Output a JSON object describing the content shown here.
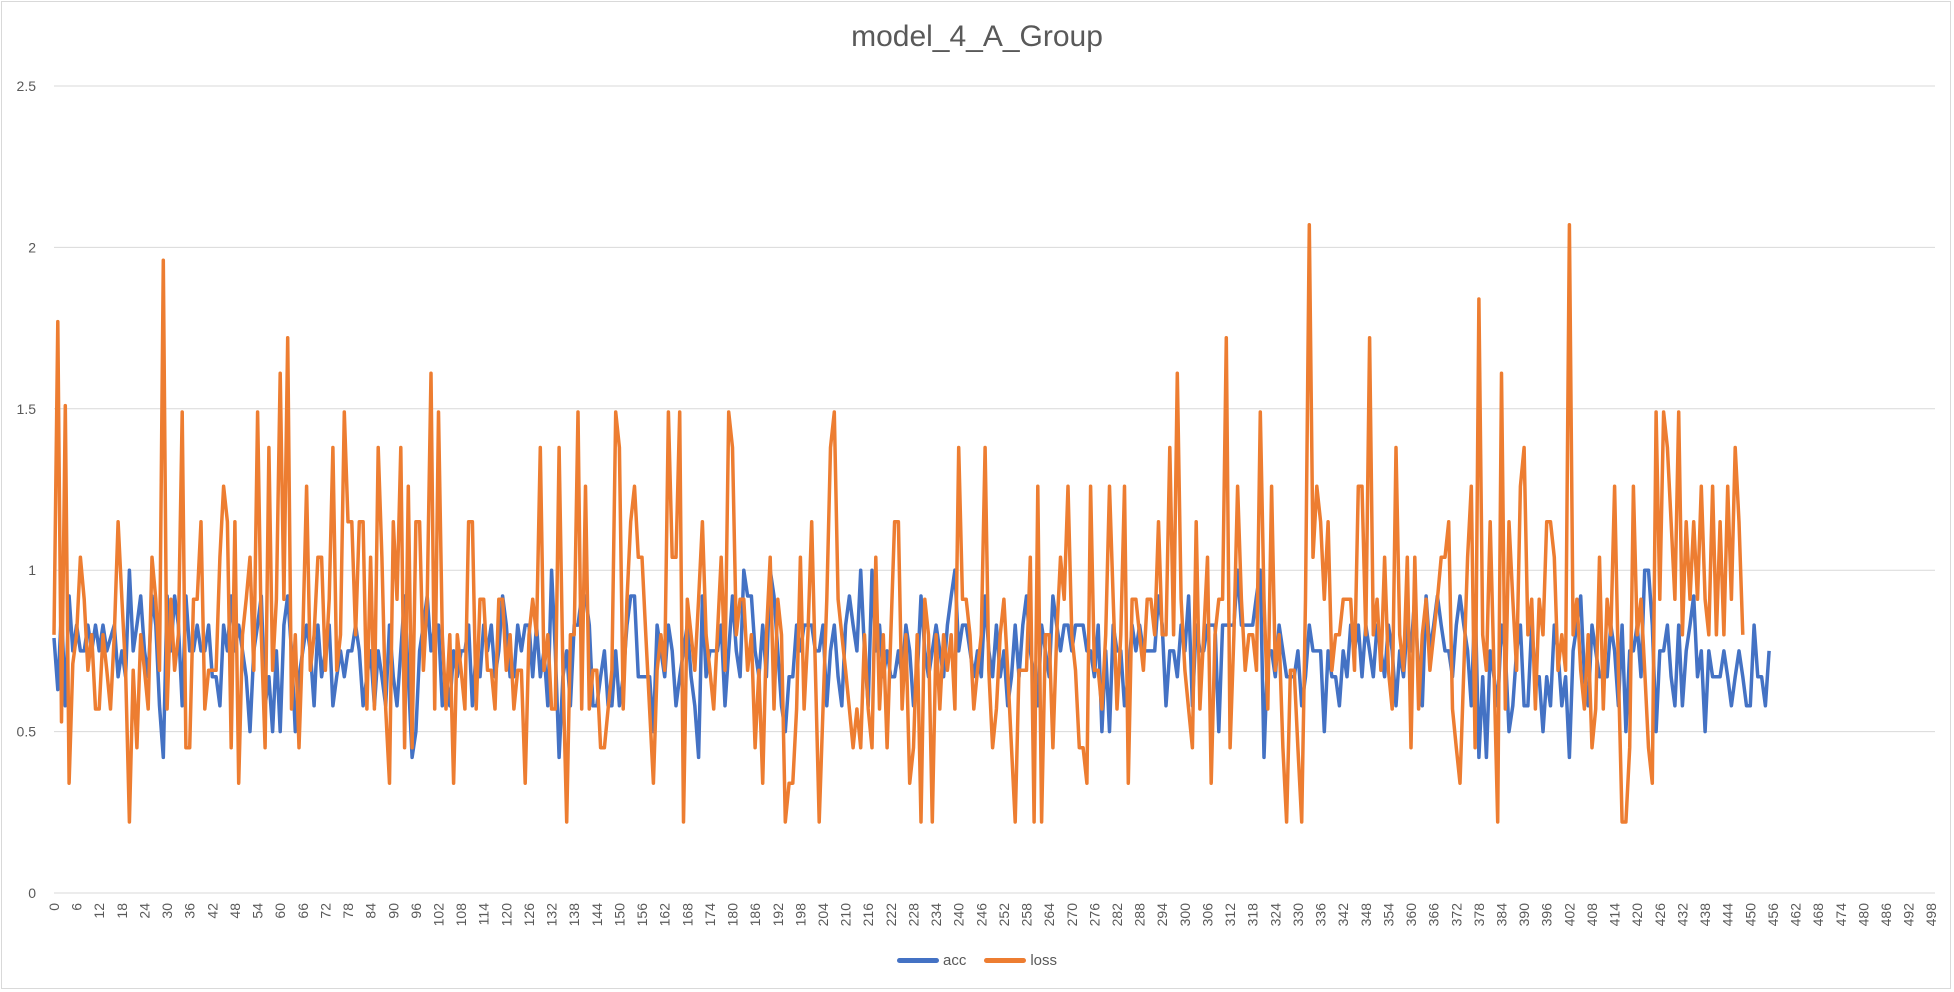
{
  "chart_data": {
    "type": "line",
    "title": "model_4_A_Group",
    "xlabel": "",
    "ylabel": "",
    "x_tick_step": 6,
    "x_range": [
      0,
      499
    ],
    "ylim": [
      0,
      2.5
    ],
    "y_ticks": [
      "0",
      "0.5",
      "1",
      "1.5",
      "2",
      "2.5"
    ],
    "grid": "horizontal",
    "legend_position": "bottom",
    "series": [
      {
        "name": "acc",
        "color": "#4472C4",
        "note": "oscillates mostly between 0.5 and 1.0, mean around 0.75",
        "values": [
          0.79,
          0.63,
          0.88,
          0.58,
          0.92,
          0.75,
          0.83,
          0.75,
          0.75,
          0.83,
          0.75,
          0.83,
          0.75,
          0.83,
          0.75,
          0.79,
          0.83,
          0.67,
          0.75,
          0.67,
          1.0,
          0.75,
          0.83,
          0.92,
          0.75,
          0.67,
          0.92,
          0.83,
          0.58,
          0.42,
          0.92,
          0.75,
          0.92,
          0.83,
          0.58,
          0.92,
          0.75,
          0.75,
          0.83,
          0.75,
          0.75,
          0.83,
          0.67,
          0.67,
          0.58,
          0.83,
          0.75,
          0.92,
          0.75,
          0.83,
          0.75,
          0.67,
          0.5,
          0.75,
          0.83,
          0.92,
          0.58,
          0.67,
          0.5,
          0.75,
          0.5,
          0.83,
          0.92,
          0.75,
          0.5,
          0.67,
          0.75,
          0.83,
          0.75,
          0.58,
          0.83,
          0.67,
          0.75,
          0.83,
          0.58,
          0.67,
          0.75,
          0.67,
          0.75,
          0.75,
          0.83,
          0.75,
          0.58,
          0.67,
          0.75,
          0.58,
          0.75,
          0.67,
          0.58,
          0.83,
          0.67,
          0.58,
          0.75,
          0.92,
          0.67,
          0.42,
          0.5,
          0.75,
          0.83,
          0.92,
          0.75,
          0.83,
          0.83,
          0.58,
          0.67,
          0.58,
          0.75,
          0.67,
          0.75,
          0.75,
          0.83,
          0.58,
          0.75,
          0.67,
          0.83,
          0.75,
          0.83,
          0.67,
          0.75,
          0.92,
          0.83,
          0.67,
          0.67,
          0.83,
          0.75,
          0.83,
          0.83,
          0.67,
          0.83,
          0.67,
          0.75,
          0.58,
          1.0,
          0.75,
          0.42,
          0.67,
          0.75,
          0.58,
          0.83,
          0.83,
          0.92,
          0.92,
          0.83,
          0.58,
          0.58,
          0.67,
          0.75,
          0.58,
          0.58,
          0.75,
          0.58,
          0.67,
          0.83,
          0.92,
          0.92,
          0.67,
          0.67,
          0.67,
          0.67,
          0.5,
          0.83,
          0.75,
          0.67,
          0.83,
          0.75,
          0.58,
          0.67,
          0.75,
          0.83,
          0.67,
          0.58,
          0.42,
          0.92,
          0.67,
          0.75,
          0.75,
          0.75,
          0.83,
          0.58,
          0.75,
          0.92,
          0.75,
          0.67,
          1.0,
          0.92,
          0.92,
          0.75,
          0.67,
          0.83,
          0.67,
          1.0,
          0.92,
          0.75,
          0.58,
          0.5,
          0.67,
          0.67,
          0.83,
          0.75,
          0.83,
          0.83,
          0.83,
          0.75,
          0.75,
          0.83,
          0.58,
          0.75,
          0.83,
          0.67,
          0.58,
          0.83,
          0.92,
          0.83,
          0.75,
          1.0,
          0.75,
          0.58,
          1.0,
          0.75,
          0.83,
          0.67,
          0.75,
          0.67,
          0.67,
          0.75,
          0.67,
          0.83,
          0.75,
          0.58,
          0.67,
          0.92,
          0.75,
          0.67,
          0.75,
          0.83,
          0.75,
          0.67,
          0.83,
          0.92,
          1.0,
          0.75,
          0.83,
          0.83,
          0.75,
          0.67,
          0.75,
          0.67,
          0.92,
          0.75,
          0.67,
          0.83,
          0.67,
          0.75,
          0.58,
          0.67,
          0.83,
          0.67,
          0.83,
          0.92,
          0.75,
          0.67,
          0.58,
          0.83,
          0.75,
          0.67,
          0.92,
          0.83,
          0.75,
          0.83,
          0.83,
          0.75,
          0.83,
          0.83,
          0.83,
          0.75,
          0.75,
          0.67,
          0.83,
          0.5,
          0.75,
          0.5,
          0.83,
          0.75,
          0.75,
          0.58,
          0.67,
          0.83,
          0.75,
          0.83,
          0.75,
          0.75,
          0.75,
          0.75,
          0.92,
          0.83,
          0.58,
          0.75,
          0.75,
          0.67,
          0.83,
          0.75,
          0.92,
          0.58,
          0.83,
          0.75,
          0.75,
          0.83,
          0.83,
          0.83,
          0.5,
          0.83,
          0.83,
          0.83,
          0.83,
          1.0,
          0.83,
          0.83,
          0.83,
          0.83,
          0.92,
          1.0,
          0.42,
          0.75,
          0.75,
          0.67,
          0.83,
          0.75,
          0.67,
          0.67,
          0.67,
          0.75,
          0.58,
          0.67,
          0.83,
          0.75,
          0.75,
          0.75,
          0.5,
          0.75,
          0.67,
          0.67,
          0.58,
          0.75,
          0.67,
          0.83,
          0.75,
          0.83,
          0.67,
          0.83,
          0.75,
          0.67,
          0.83,
          0.75,
          0.67,
          0.83,
          0.75,
          0.58,
          0.75,
          0.67,
          0.83,
          0.75,
          0.92,
          0.67,
          0.58,
          0.92,
          0.75,
          0.83,
          0.92,
          0.83,
          0.75,
          0.75,
          0.67,
          0.83,
          0.92,
          0.83,
          0.75,
          0.58,
          0.92,
          0.42,
          0.67,
          0.42,
          0.75,
          0.67,
          0.58,
          0.83,
          0.75,
          0.5,
          0.58,
          0.75,
          0.83,
          0.58,
          0.58,
          0.83,
          0.67,
          0.67,
          0.5,
          0.67,
          0.58,
          0.83,
          0.75,
          0.58,
          0.67,
          0.42,
          0.75,
          0.83,
          0.92,
          0.67,
          0.58,
          0.83,
          0.75,
          0.67,
          0.67,
          0.67,
          0.83,
          0.75,
          0.58,
          0.83,
          0.5,
          0.75,
          0.75,
          0.83,
          0.67,
          1.0,
          1.0,
          0.83,
          0.5,
          0.75,
          0.75,
          0.83,
          0.67,
          0.58,
          0.83,
          0.58,
          0.75,
          0.83,
          0.92,
          0.67,
          0.75,
          0.5,
          0.75,
          0.67,
          0.67,
          0.67,
          0.75,
          0.67,
          0.58,
          0.67,
          0.75,
          0.67,
          0.58,
          0.58,
          0.83,
          0.67,
          0.67,
          0.58,
          0.75
        ]
      },
      {
        "name": "loss",
        "color": "#ED7D31",
        "note": "highly volatile, mostly 0.3 to 1.5, peaks near 2.07 around x=362 and x=440, 1.96 around x=29",
        "values": [
          0.8,
          1.77,
          0.53,
          1.51,
          0.34,
          0.71,
          0.8,
          1.04,
          0.91,
          0.69,
          0.8,
          0.57,
          0.57,
          0.8,
          0.69,
          0.57,
          0.8,
          1.15,
          0.91,
          0.69,
          0.22,
          0.69,
          0.45,
          0.8,
          0.69,
          0.57,
          1.04,
          0.91,
          0.69,
          1.96,
          0.57,
          0.91,
          0.69,
          0.8,
          1.49,
          0.45,
          0.45,
          0.91,
          0.91,
          1.15,
          0.57,
          0.69,
          0.69,
          0.69,
          1.04,
          1.26,
          1.15,
          0.45,
          1.15,
          0.34,
          0.8,
          0.91,
          1.04,
          0.69,
          1.49,
          0.8,
          0.45,
          1.38,
          0.69,
          0.91,
          1.61,
          0.91,
          1.72,
          0.57,
          0.8,
          0.45,
          0.8,
          1.26,
          0.69,
          0.8,
          1.04,
          1.04,
          0.69,
          0.91,
          1.38,
          0.69,
          0.8,
          1.49,
          1.15,
          1.15,
          0.8,
          1.15,
          1.15,
          0.57,
          1.04,
          0.57,
          1.38,
          1.04,
          0.57,
          0.34,
          1.15,
          0.91,
          1.38,
          0.45,
          1.26,
          0.45,
          1.15,
          1.15,
          0.69,
          0.91,
          1.61,
          0.57,
          1.49,
          0.8,
          0.57,
          0.8,
          0.34,
          0.8,
          0.69,
          0.57,
          1.15,
          1.15,
          0.57,
          0.91,
          0.91,
          0.69,
          0.69,
          0.57,
          0.91,
          0.91,
          0.69,
          0.8,
          0.57,
          0.69,
          0.69,
          0.34,
          0.8,
          0.91,
          0.8,
          1.38,
          0.69,
          0.8,
          0.57,
          0.57,
          1.38,
          0.69,
          0.22,
          0.8,
          0.8,
          1.49,
          0.57,
          1.26,
          0.57,
          0.69,
          0.69,
          0.45,
          0.45,
          0.57,
          0.69,
          1.49,
          1.38,
          0.57,
          0.91,
          1.15,
          1.26,
          1.04,
          1.04,
          0.8,
          0.57,
          0.34,
          0.69,
          0.8,
          0.69,
          1.49,
          1.04,
          1.04,
          1.49,
          0.22,
          0.91,
          0.8,
          0.69,
          0.91,
          1.15,
          0.8,
          0.69,
          0.57,
          0.8,
          1.04,
          0.69,
          1.49,
          1.38,
          0.8,
          0.91,
          0.91,
          0.69,
          0.8,
          0.45,
          0.69,
          0.34,
          0.8,
          1.04,
          0.57,
          0.91,
          0.8,
          0.22,
          0.34,
          0.34,
          0.57,
          1.04,
          0.57,
          0.8,
          1.15,
          0.69,
          0.22,
          0.57,
          0.91,
          1.38,
          1.49,
          0.91,
          0.8,
          0.69,
          0.57,
          0.45,
          0.57,
          0.45,
          0.8,
          0.57,
          0.45,
          1.04,
          0.57,
          0.8,
          0.45,
          0.8,
          1.15,
          1.15,
          0.57,
          0.8,
          0.34,
          0.45,
          0.8,
          0.22,
          0.91,
          0.8,
          0.22,
          0.8,
          0.57,
          0.8,
          0.69,
          0.8,
          0.57,
          1.38,
          0.91,
          0.91,
          0.8,
          0.57,
          0.69,
          0.8,
          1.38,
          0.69,
          0.45,
          0.57,
          0.8,
          0.91,
          0.69,
          0.45,
          0.22,
          0.69,
          0.69,
          0.69,
          1.04,
          0.22,
          1.26,
          0.22,
          0.8,
          0.8,
          0.45,
          0.8,
          1.04,
          0.91,
          1.26,
          0.8,
          0.69,
          0.45,
          0.45,
          0.34,
          1.26,
          0.69,
          0.69,
          0.57,
          0.8,
          1.26,
          0.91,
          0.57,
          0.8,
          1.26,
          0.34,
          0.91,
          0.91,
          0.8,
          0.69,
          0.91,
          0.91,
          0.8,
          1.15,
          0.8,
          0.8,
          1.38,
          0.8,
          1.61,
          0.91,
          0.69,
          0.57,
          0.45,
          1.15,
          0.57,
          0.8,
          1.04,
          0.34,
          0.8,
          0.91,
          0.91,
          1.72,
          0.45,
          0.8,
          1.26,
          0.91,
          0.69,
          0.8,
          0.8,
          0.69,
          1.49,
          0.91,
          0.57,
          1.26,
          0.69,
          0.8,
          0.45,
          0.22,
          0.69,
          0.69,
          0.45,
          0.22,
          0.91,
          2.07,
          1.04,
          1.26,
          1.15,
          0.91,
          1.15,
          0.69,
          0.8,
          0.8,
          0.91,
          0.91,
          0.91,
          0.69,
          1.26,
          1.26,
          0.8,
          1.72,
          0.8,
          0.91,
          0.69,
          1.04,
          0.69,
          0.57,
          1.38,
          0.8,
          0.69,
          1.04,
          0.45,
          1.04,
          0.57,
          0.8,
          0.91,
          0.69,
          0.8,
          0.91,
          1.04,
          1.04,
          1.15,
          0.57,
          0.45,
          0.34,
          0.69,
          1.04,
          1.26,
          0.45,
          1.84,
          0.8,
          0.69,
          1.15,
          0.69,
          0.22,
          1.61,
          0.57,
          1.15,
          0.91,
          0.69,
          1.26,
          1.38,
          0.8,
          0.91,
          0.57,
          0.91,
          0.8,
          1.15,
          1.15,
          1.04,
          0.69,
          0.8,
          0.69,
          2.07,
          0.8,
          0.91,
          0.69,
          0.57,
          0.8,
          0.45,
          0.57,
          1.04,
          0.57,
          0.91,
          0.8,
          1.26,
          0.69,
          0.22,
          0.22,
          0.45,
          1.26,
          0.8,
          0.91,
          0.69,
          0.45,
          0.34,
          1.49,
          0.91,
          1.49,
          1.38,
          1.15,
          0.91,
          1.49,
          0.8,
          1.15,
          0.91,
          1.15,
          0.91,
          1.26,
          0.91,
          0.8,
          1.26,
          0.8,
          1.15,
          0.8,
          1.26,
          0.91,
          1.38,
          1.15,
          0.8
        ]
      }
    ]
  }
}
